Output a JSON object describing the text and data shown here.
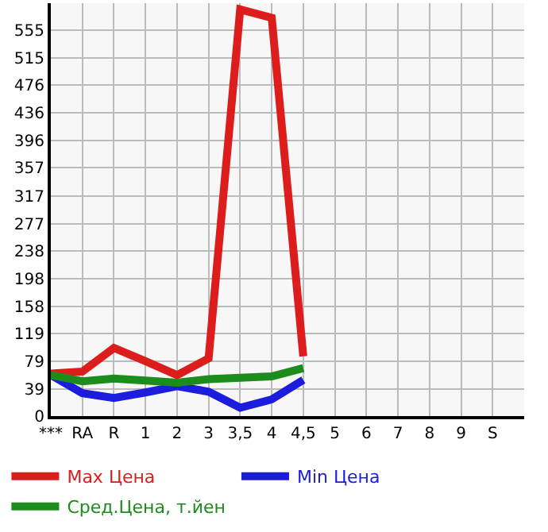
{
  "chart_data": {
    "type": "line",
    "categories": [
      "***",
      "RA",
      "R",
      "1",
      "2",
      "3",
      "3,5",
      "4",
      "4,5",
      "5",
      "6",
      "7",
      "8",
      "9",
      "S"
    ],
    "series": [
      {
        "name": "Max Цена",
        "color": "#dd1c1c",
        "values": [
          61,
          64,
          98,
          79,
          59,
          83,
          585,
          573,
          86,
          null,
          null,
          null,
          null,
          null,
          null
        ]
      },
      {
        "name": "Min Цена",
        "color": "#1c1cdd",
        "values": [
          59,
          33,
          26,
          34,
          43,
          35,
          12,
          24,
          52,
          null,
          null,
          null,
          null,
          null,
          null
        ]
      },
      {
        "name": "Сред.Цена, т.йен",
        "color": "#1c8c1c",
        "values": [
          59,
          50,
          54,
          51,
          48,
          53,
          55,
          57,
          69,
          null,
          null,
          null,
          null,
          null,
          null
        ]
      }
    ],
    "ylim": [
      0,
      594
    ],
    "yticks": [
      0,
      39,
      79,
      119,
      158,
      198,
      238,
      277,
      317,
      357,
      396,
      436,
      476,
      515,
      555
    ],
    "grid": true,
    "legend": "bottom",
    "marker": "none",
    "line_style": "solid"
  }
}
